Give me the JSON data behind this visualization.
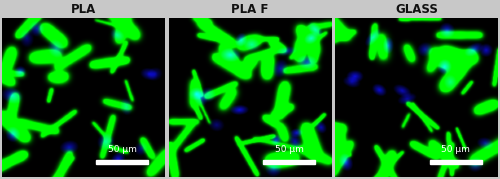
{
  "panels": [
    "PLA",
    "PLA F",
    "GLASS"
  ],
  "background_color": "#000000",
  "figure_bg": "#c8c8c8",
  "label_color": "#111111",
  "label_fontsize": 8.5,
  "label_fontweight": "bold",
  "scalebar_text": "50 μm",
  "scalebar_color": "#ffffff",
  "scalebar_fontsize": 6.5,
  "figsize": [
    5.0,
    1.79
  ],
  "dpi": 100,
  "seeds_cells": [
    42,
    77,
    123
  ],
  "seeds_nuclei": [
    11,
    22,
    33
  ],
  "densities": [
    28,
    38,
    32
  ],
  "nucleus_counts": [
    14,
    18,
    16
  ]
}
